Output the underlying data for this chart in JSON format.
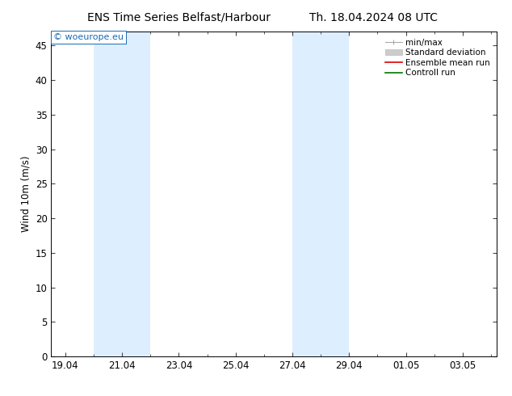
{
  "title_left": "ENS Time Series Belfast/Harbour",
  "title_right": "Th. 18.04.2024 08 UTC",
  "ylabel": "Wind 10m (m/s)",
  "ylim": [
    0,
    47
  ],
  "yticks": [
    0,
    5,
    10,
    15,
    20,
    25,
    30,
    35,
    40,
    45
  ],
  "bg_color": "#ffffff",
  "plot_bg_color": "#ffffff",
  "shaded_bands_num": [
    {
      "x_start": 20.0,
      "x_end": 22.0,
      "color": "#ddeeff"
    },
    {
      "x_start": 27.0,
      "x_end": 29.0,
      "color": "#ddeeff"
    }
  ],
  "xtick_labels": [
    "19.04",
    "21.04",
    "23.04",
    "25.04",
    "27.04",
    "29.04",
    "01.05",
    "03.05"
  ],
  "xtick_nums": [
    19,
    21,
    23,
    25,
    27,
    29,
    31,
    33
  ],
  "x_min": 18.5,
  "x_max": 34.2,
  "watermark_text": "© woeurope.eu",
  "watermark_color": "#1a6bb5",
  "legend_items": [
    {
      "label": "min/max",
      "type": "minmax",
      "color": "#999999"
    },
    {
      "label": "Standard deviation",
      "type": "patch",
      "color": "#cccccc"
    },
    {
      "label": "Ensemble mean run",
      "type": "line",
      "color": "#dd0000"
    },
    {
      "label": "Controll run",
      "type": "line",
      "color": "#007700"
    }
  ],
  "font_size": 8.5,
  "title_font_size": 10,
  "axis_color": "#000000",
  "tick_color": "#444444",
  "border_color": "#000000"
}
